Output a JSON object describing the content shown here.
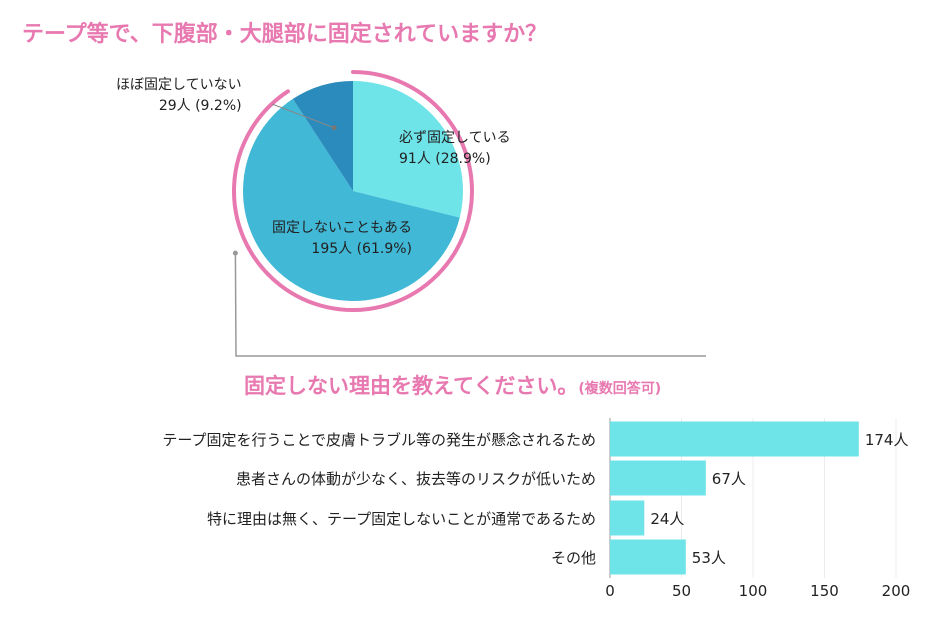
{
  "titles": {
    "pie": "テープ等で、下腹部・大腿部に固定されていますか？",
    "bar": "固定しない理由を教えてください。",
    "bar_note": "(複数回答可)"
  },
  "chart_data": [
    {
      "type": "pie",
      "title": "テープ等で、下腹部・大腿部に固定されていますか？",
      "slices": [
        {
          "label": "必ず固定している",
          "count": "91人",
          "percent": "(28.9%)",
          "value": 91,
          "pct": 28.9,
          "color": "#6ee3e8"
        },
        {
          "label": "固定しないこともある",
          "count": "195人",
          "percent": "(61.9%)",
          "value": 195,
          "pct": 61.9,
          "color": "#40b8d6"
        },
        {
          "label": "ほぼ固定していない",
          "count": "29人",
          "percent": "(9.2%)",
          "value": 29,
          "pct": 9.2,
          "color": "#2b8bbd"
        }
      ],
      "highlight_color": "#e879b0"
    },
    {
      "type": "bar",
      "orientation": "horizontal",
      "title": "固定しない理由を教えてください。(複数回答可)",
      "categories": [
        "テープ固定を行うことで皮膚トラブル等の発生が懸念されるため",
        "患者さんの体動が少なく、抜去等のリスクが低いため",
        "特に理由は無く、テープ固定しないことが通常であるため",
        "その他"
      ],
      "values": [
        174,
        67,
        24,
        53
      ],
      "value_labels": [
        "174人",
        "67人",
        "24人",
        "53人"
      ],
      "xlim": [
        0,
        200
      ],
      "xticks": [
        "0",
        "50",
        "100",
        "150",
        "200"
      ],
      "grid": true,
      "color": "#6ee3e8"
    }
  ]
}
